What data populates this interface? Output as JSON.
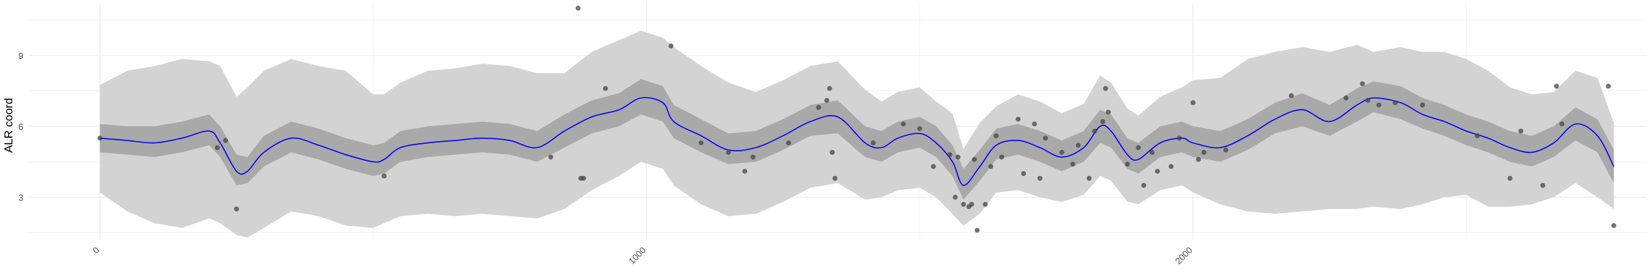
{
  "chart_data": {
    "type": "line",
    "title": "",
    "xlabel": "",
    "ylabel": "ALR coord",
    "xlim": [
      -130,
      2830
    ],
    "ylim": [
      1.2,
      11.2
    ],
    "x_ticks": [
      0,
      1000,
      2000
    ],
    "y_ticks": [
      3,
      6,
      9
    ],
    "grid": true,
    "legend": "none",
    "colors": {
      "mean_line": "#0000ff",
      "inner_band": "#a9a9a9",
      "outer_band": "#d3d3d3",
      "points": "#444444",
      "grid": "#ebebeb"
    },
    "band_x": [
      0,
      50,
      100,
      150,
      200,
      220,
      250,
      270,
      300,
      350,
      400,
      450,
      500,
      520,
      550,
      600,
      650,
      700,
      750,
      800,
      850,
      900,
      950,
      990,
      1030,
      1050,
      1100,
      1150,
      1200,
      1250,
      1300,
      1350,
      1400,
      1430,
      1460,
      1500,
      1530,
      1560,
      1580,
      1610,
      1640,
      1680,
      1720,
      1760,
      1800,
      1830,
      1850,
      1880,
      1900,
      1940,
      1980,
      2000,
      2050,
      2100,
      2150,
      2200,
      2250,
      2300,
      2330,
      2380,
      2420,
      2460,
      2500,
      2540,
      2580,
      2620,
      2660,
      2700,
      2740,
      2770
    ],
    "mean": [
      5.5,
      5.4,
      5.3,
      5.5,
      5.8,
      5.3,
      4.1,
      4.1,
      4.9,
      5.5,
      5.2,
      4.8,
      4.5,
      4.6,
      5.1,
      5.3,
      5.4,
      5.5,
      5.4,
      5.1,
      5.8,
      6.4,
      6.7,
      7.2,
      7.0,
      6.2,
      5.6,
      5.0,
      5.1,
      5.6,
      6.2,
      6.4,
      5.3,
      5.1,
      5.5,
      5.7,
      5.3,
      4.5,
      3.5,
      4.3,
      5.2,
      5.4,
      5.1,
      4.7,
      5.1,
      6.0,
      5.8,
      4.8,
      4.6,
      5.3,
      5.5,
      5.3,
      5.1,
      5.6,
      6.3,
      6.7,
      6.2,
      6.9,
      7.2,
      7.0,
      6.5,
      6.2,
      5.8,
      5.5,
      5.1,
      4.9,
      5.3,
      6.1,
      5.6,
      4.3
    ],
    "inner_lower": [
      4.9,
      4.8,
      4.7,
      4.9,
      5.2,
      4.7,
      3.5,
      3.6,
      4.3,
      4.9,
      4.6,
      4.2,
      3.9,
      4.0,
      4.5,
      4.7,
      4.8,
      4.9,
      4.8,
      4.5,
      5.1,
      5.7,
      6.0,
      6.5,
      6.2,
      5.5,
      4.9,
      4.4,
      4.5,
      5.0,
      5.6,
      5.7,
      4.7,
      4.5,
      4.9,
      5.1,
      4.7,
      3.9,
      2.9,
      3.7,
      4.6,
      4.8,
      4.5,
      4.1,
      4.5,
      5.3,
      5.1,
      4.2,
      4.0,
      4.7,
      4.9,
      4.7,
      4.5,
      5.0,
      5.7,
      6.0,
      5.6,
      6.2,
      6.6,
      6.3,
      5.9,
      5.6,
      5.2,
      4.9,
      4.5,
      4.3,
      4.7,
      5.4,
      4.9,
      3.6
    ],
    "inner_upper": [
      6.1,
      6.0,
      6.0,
      6.2,
      6.5,
      6.0,
      4.8,
      4.7,
      5.6,
      6.2,
      5.9,
      5.5,
      5.2,
      5.3,
      5.8,
      6.0,
      6.1,
      6.2,
      6.1,
      5.8,
      6.5,
      7.1,
      7.4,
      8.0,
      7.7,
      6.9,
      6.3,
      5.7,
      5.8,
      6.3,
      6.9,
      7.1,
      6.0,
      5.8,
      6.2,
      6.4,
      6.0,
      5.2,
      4.2,
      5.0,
      5.9,
      6.1,
      5.8,
      5.4,
      5.8,
      6.7,
      6.5,
      5.5,
      5.3,
      6.0,
      6.2,
      6.0,
      5.8,
      6.3,
      7.0,
      7.4,
      6.9,
      7.6,
      7.9,
      7.7,
      7.2,
      6.9,
      6.5,
      6.2,
      5.8,
      5.6,
      6.0,
      6.8,
      6.3,
      5.0
    ],
    "outer_lower": [
      3.2,
      2.4,
      1.9,
      1.7,
      2.1,
      1.9,
      1.4,
      1.3,
      1.7,
      2.4,
      2.2,
      1.8,
      1.7,
      1.9,
      2.2,
      2.3,
      2.2,
      2.3,
      2.2,
      2.1,
      2.5,
      3.3,
      3.9,
      4.5,
      4.2,
      3.5,
      2.7,
      2.2,
      2.3,
      2.8,
      3.4,
      3.6,
      2.9,
      3.0,
      3.3,
      3.4,
      3.0,
      2.3,
      1.8,
      2.3,
      3.2,
      3.3,
      3.0,
      2.8,
      3.1,
      3.9,
      3.7,
      2.8,
      2.7,
      3.3,
      3.5,
      3.2,
      2.7,
      2.4,
      2.3,
      2.4,
      2.5,
      2.5,
      2.6,
      2.5,
      2.7,
      3.0,
      3.1,
      2.6,
      2.6,
      2.7,
      3.0,
      3.6,
      3.0,
      2.5
    ],
    "outer_upper": [
      7.8,
      8.3,
      8.6,
      8.8,
      8.8,
      8.5,
      7.3,
      7.6,
      8.4,
      8.8,
      8.6,
      8.3,
      7.4,
      7.3,
      7.9,
      8.3,
      8.5,
      8.6,
      8.6,
      8.2,
      8.3,
      9.1,
      9.7,
      10.0,
      9.8,
      9.3,
      8.6,
      7.8,
      7.5,
      7.9,
      8.6,
      8.7,
      7.6,
      7.0,
      7.5,
      7.6,
      7.1,
      6.5,
      5.1,
      6.1,
      6.9,
      7.3,
      7.1,
      6.5,
      7.0,
      8.1,
      7.9,
      6.7,
      6.5,
      7.2,
      7.7,
      7.9,
      8.1,
      8.8,
      9.2,
      9.3,
      9.2,
      9.4,
      9.2,
      9.3,
      9.2,
      9.1,
      8.9,
      8.3,
      7.7,
      7.3,
      7.5,
      8.3,
      8.1,
      6.1
    ],
    "points": [
      [
        0,
        5.5
      ],
      [
        215,
        5.1
      ],
      [
        230,
        5.4
      ],
      [
        250,
        2.5
      ],
      [
        520,
        3.9
      ],
      [
        825,
        4.7
      ],
      [
        875,
        11.0
      ],
      [
        880,
        3.8
      ],
      [
        885,
        3.8
      ],
      [
        925,
        7.6
      ],
      [
        1045,
        9.4
      ],
      [
        1100,
        5.3
      ],
      [
        1150,
        4.9
      ],
      [
        1180,
        4.1
      ],
      [
        1195,
        4.7
      ],
      [
        1260,
        5.3
      ],
      [
        1315,
        6.8
      ],
      [
        1330,
        7.1
      ],
      [
        1335,
        7.6
      ],
      [
        1340,
        4.9
      ],
      [
        1345,
        3.8
      ],
      [
        1415,
        5.3
      ],
      [
        1470,
        6.1
      ],
      [
        1500,
        5.9
      ],
      [
        1525,
        4.3
      ],
      [
        1555,
        4.8
      ],
      [
        1565,
        3.0
      ],
      [
        1570,
        4.7
      ],
      [
        1580,
        2.7
      ],
      [
        1590,
        2.6
      ],
      [
        1595,
        2.7
      ],
      [
        1600,
        4.6
      ],
      [
        1605,
        1.6
      ],
      [
        1620,
        2.7
      ],
      [
        1630,
        4.3
      ],
      [
        1640,
        5.6
      ],
      [
        1650,
        4.7
      ],
      [
        1680,
        6.3
      ],
      [
        1690,
        4.0
      ],
      [
        1710,
        6.1
      ],
      [
        1720,
        3.8
      ],
      [
        1730,
        5.5
      ],
      [
        1760,
        4.9
      ],
      [
        1780,
        4.4
      ],
      [
        1790,
        5.2
      ],
      [
        1810,
        3.8
      ],
      [
        1820,
        5.8
      ],
      [
        1835,
        6.2
      ],
      [
        1840,
        7.6
      ],
      [
        1845,
        6.6
      ],
      [
        1880,
        4.4
      ],
      [
        1900,
        5.1
      ],
      [
        1910,
        3.5
      ],
      [
        1925,
        4.9
      ],
      [
        1935,
        4.1
      ],
      [
        1960,
        4.3
      ],
      [
        1975,
        5.5
      ],
      [
        2000,
        7.0
      ],
      [
        2010,
        4.6
      ],
      [
        2020,
        4.9
      ],
      [
        2060,
        5.0
      ],
      [
        2180,
        7.3
      ],
      [
        2280,
        7.2
      ],
      [
        2310,
        7.8
      ],
      [
        2320,
        7.1
      ],
      [
        2340,
        6.9
      ],
      [
        2370,
        7.0
      ],
      [
        2420,
        6.9
      ],
      [
        2520,
        5.6
      ],
      [
        2580,
        3.8
      ],
      [
        2600,
        5.8
      ],
      [
        2640,
        3.5
      ],
      [
        2665,
        7.7
      ],
      [
        2675,
        6.1
      ],
      [
        2760,
        7.7
      ],
      [
        2770,
        1.8
      ]
    ]
  }
}
